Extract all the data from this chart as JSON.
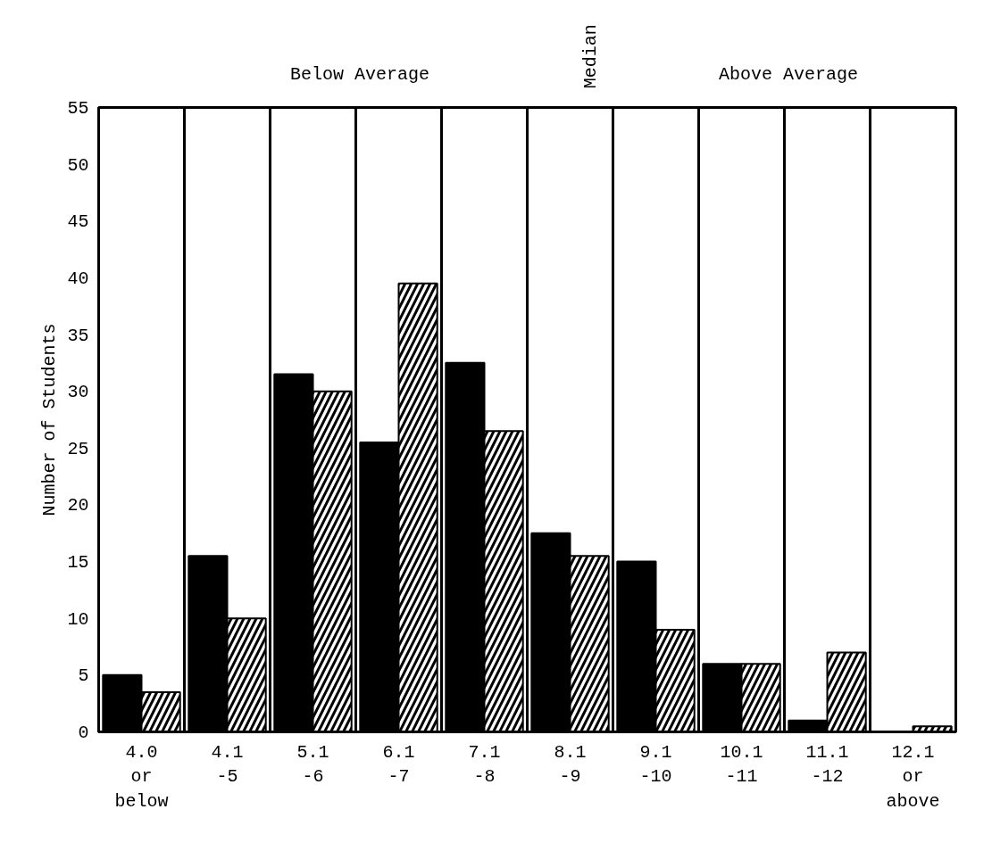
{
  "chart_data": {
    "type": "bar",
    "ylabel": "Number of Students",
    "categories": [
      "4.0\nor\nbelow",
      "4.1\n-5",
      "5.1\n-6",
      "6.1\n-7",
      "7.1\n-8",
      "8.1\n-9",
      "9.1\n-10",
      "10.1\n-11",
      "11.1\n-12",
      "12.1\nor\nabove"
    ],
    "series": [
      {
        "color": "#000000",
        "values": [
          5,
          15.5,
          31.5,
          25.5,
          32.5,
          17.5,
          15,
          6,
          1,
          0
        ]
      },
      {
        "color": "#ffffff",
        "values": [
          3.5,
          10,
          30,
          39.5,
          26.5,
          15.5,
          9,
          6,
          7,
          0.5
        ]
      }
    ],
    "ylim": [
      0,
      55
    ],
    "yticks": [
      0,
      5,
      10,
      15,
      20,
      25,
      30,
      35,
      40,
      45,
      50,
      55
    ],
    "grid": "x",
    "annotations": [
      "Below Average",
      "Median",
      "Above Average"
    ]
  }
}
